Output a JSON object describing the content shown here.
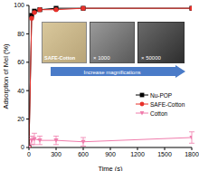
{
  "chart_data": {
    "type": "line",
    "x_label": "Time (s)",
    "y_label": "Adsorption of Mel (%)",
    "x": [
      0,
      30,
      60,
      120,
      300,
      600,
      1800
    ],
    "xlim": [
      0,
      1800
    ],
    "xticks": [
      0,
      300,
      600,
      900,
      1200,
      1500,
      1800
    ],
    "ylim": [
      0,
      100
    ],
    "yticks": [
      0,
      20,
      40,
      60,
      80,
      100
    ],
    "grid": false,
    "legend": "right",
    "series": [
      {
        "name": "Nu-POP",
        "color": "#000000",
        "marker": "square",
        "values": [
          0,
          93,
          96,
          97,
          98,
          98,
          98
        ]
      },
      {
        "name": "SAFE-Cotton",
        "color": "#e8302a",
        "marker": "circle",
        "values": [
          0,
          91,
          95,
          97,
          97,
          98,
          98
        ]
      },
      {
        "name": "Cotton",
        "color": "#f07cac",
        "marker": "triangle_down",
        "values": [
          0,
          5,
          6,
          5,
          5,
          4,
          7
        ],
        "errors": [
          0,
          3,
          4,
          3,
          3,
          3,
          4
        ]
      }
    ],
    "annotations": [
      "SAFE-Cotton",
      "× 1000",
      "× 50000",
      "Increase magnifications"
    ]
  }
}
